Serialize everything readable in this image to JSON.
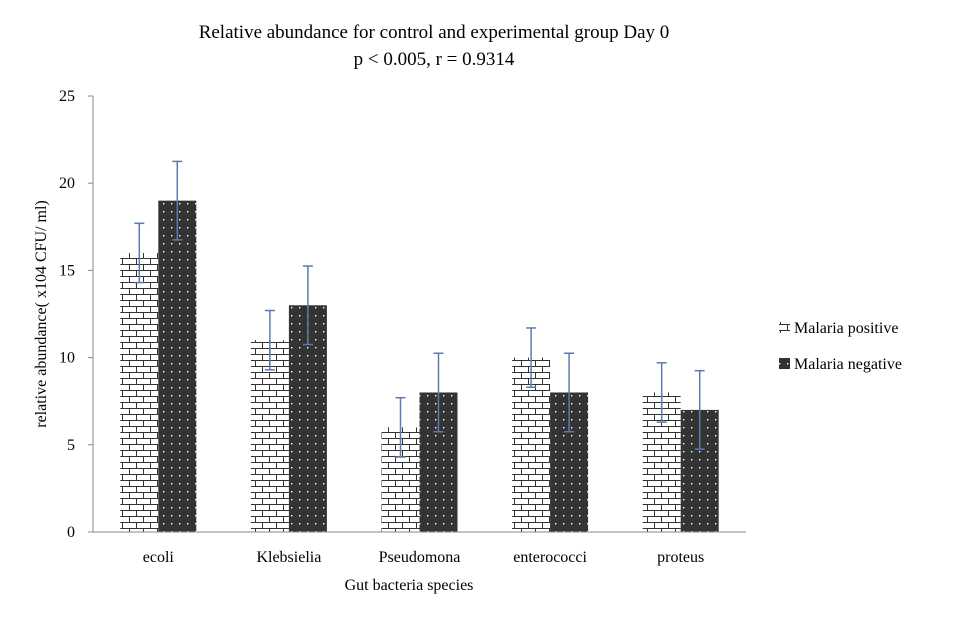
{
  "chart_data": {
    "type": "bar",
    "title": "Relative abundance for control and experimental group Day 0",
    "subtitle": "p < 0.005, r = 0.9314",
    "xlabel": "Gut bacteria species",
    "ylabel": "relative abundance( x104 CFU/ ml)",
    "categories": [
      "ecoli",
      "Klebsielia",
      "Pseudomona",
      "enterococci",
      "proteus"
    ],
    "ylim": [
      0,
      25
    ],
    "yticks": [
      0,
      5,
      10,
      15,
      20,
      25
    ],
    "grid": false,
    "legend_position": "right",
    "series": [
      {
        "name": "Malaria positive",
        "values": [
          16,
          11,
          6,
          10,
          8
        ],
        "error": [
          1.7,
          1.7,
          1.7,
          1.7,
          1.7
        ],
        "pattern": "brick",
        "color": "#ffffff"
      },
      {
        "name": "Malaria negative",
        "values": [
          19,
          13,
          8,
          8,
          7
        ],
        "error": [
          2.25,
          2.25,
          2.25,
          2.25,
          2.25
        ],
        "pattern": "dots",
        "color": "#333333"
      }
    ],
    "error_bar_color": "#5b7bb0"
  }
}
